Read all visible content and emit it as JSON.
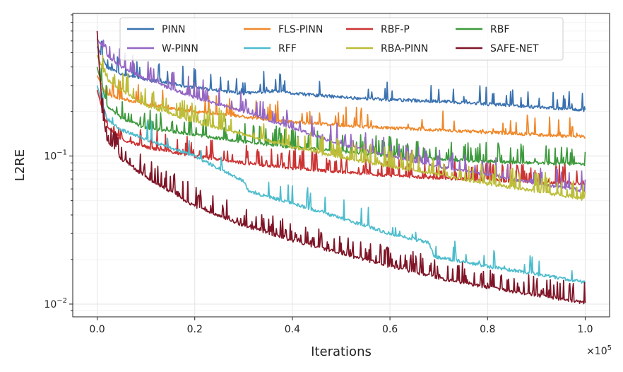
{
  "chart_data": {
    "type": "line",
    "title": "",
    "xlabel": "Iterations",
    "ylabel": "L2RE",
    "x_multiplier_label": "×10",
    "x_multiplier_exp": "5",
    "x_scale": "linear",
    "y_scale": "log",
    "xlim": [
      -0.05,
      1.05
    ],
    "ylim": [
      0.0082,
      0.92
    ],
    "x_ticks": [
      0.0,
      0.2,
      0.4,
      0.6,
      0.8,
      1.0
    ],
    "x_tick_labels": [
      "0.0",
      "0.2",
      "0.4",
      "0.6",
      "0.8",
      "1.0"
    ],
    "y_ticks": [
      0.1,
      0.01
    ],
    "y_tick_bases": [
      "10",
      "10"
    ],
    "y_tick_exponents": [
      "−1",
      "−2"
    ],
    "grid": true,
    "legend_position": "top-center",
    "legend_columns": 4,
    "series": [
      {
        "name": "PINN",
        "color": "#3a72b0",
        "noise": 0.12,
        "seed": 11,
        "points": [
          [
            0.0,
            0.55
          ],
          [
            0.02,
            0.4
          ],
          [
            0.05,
            0.36
          ],
          [
            0.1,
            0.33
          ],
          [
            0.2,
            0.29
          ],
          [
            0.3,
            0.265
          ],
          [
            0.36,
            0.275
          ],
          [
            0.4,
            0.265
          ],
          [
            0.5,
            0.25
          ],
          [
            0.6,
            0.24
          ],
          [
            0.7,
            0.235
          ],
          [
            0.8,
            0.225
          ],
          [
            0.9,
            0.215
          ],
          [
            1.0,
            0.205
          ]
        ]
      },
      {
        "name": "FLS-PINN",
        "color": "#f0882a",
        "noise": 0.08,
        "seed": 23,
        "points": [
          [
            0.0,
            0.35
          ],
          [
            0.02,
            0.26
          ],
          [
            0.05,
            0.245
          ],
          [
            0.1,
            0.225
          ],
          [
            0.2,
            0.2
          ],
          [
            0.3,
            0.185
          ],
          [
            0.4,
            0.17
          ],
          [
            0.5,
            0.162
          ],
          [
            0.6,
            0.155
          ],
          [
            0.7,
            0.15
          ],
          [
            0.8,
            0.145
          ],
          [
            0.9,
            0.14
          ],
          [
            1.0,
            0.135
          ]
        ]
      },
      {
        "name": "RBF-P",
        "color": "#cc3333",
        "noise": 0.22,
        "seed": 37,
        "points": [
          [
            0.0,
            0.28
          ],
          [
            0.02,
            0.16
          ],
          [
            0.05,
            0.13
          ],
          [
            0.1,
            0.115
          ],
          [
            0.2,
            0.1
          ],
          [
            0.3,
            0.09
          ],
          [
            0.4,
            0.083
          ],
          [
            0.5,
            0.078
          ],
          [
            0.6,
            0.074
          ],
          [
            0.7,
            0.071
          ],
          [
            0.8,
            0.069
          ],
          [
            0.9,
            0.067
          ],
          [
            1.0,
            0.065
          ]
        ]
      },
      {
        "name": "RBF",
        "color": "#3d9a3d",
        "noise": 0.22,
        "seed": 41,
        "points": [
          [
            0.0,
            0.4
          ],
          [
            0.02,
            0.22
          ],
          [
            0.05,
            0.18
          ],
          [
            0.1,
            0.155
          ],
          [
            0.2,
            0.14
          ],
          [
            0.3,
            0.125
          ],
          [
            0.4,
            0.115
          ],
          [
            0.5,
            0.108
          ],
          [
            0.6,
            0.1
          ],
          [
            0.7,
            0.095
          ],
          [
            0.8,
            0.092
          ],
          [
            0.9,
            0.09
          ],
          [
            1.0,
            0.088
          ]
        ]
      },
      {
        "name": "W-PINN",
        "color": "#9467c4",
        "noise": 0.2,
        "seed": 53,
        "points": [
          [
            0.0,
            0.62
          ],
          [
            0.02,
            0.48
          ],
          [
            0.05,
            0.4
          ],
          [
            0.1,
            0.33
          ],
          [
            0.2,
            0.25
          ],
          [
            0.3,
            0.2
          ],
          [
            0.4,
            0.155
          ],
          [
            0.5,
            0.12
          ],
          [
            0.6,
            0.1
          ],
          [
            0.7,
            0.085
          ],
          [
            0.8,
            0.075
          ],
          [
            0.9,
            0.065
          ],
          [
            1.0,
            0.058
          ]
        ]
      },
      {
        "name": "RFF",
        "color": "#4dbccd",
        "noise": 0.06,
        "seed": 67,
        "points": [
          [
            0.0,
            0.3
          ],
          [
            0.02,
            0.18
          ],
          [
            0.05,
            0.15
          ],
          [
            0.1,
            0.13
          ],
          [
            0.2,
            0.1
          ],
          [
            0.3,
            0.068
          ],
          [
            0.31,
            0.058
          ],
          [
            0.4,
            0.048
          ],
          [
            0.5,
            0.038
          ],
          [
            0.6,
            0.03
          ],
          [
            0.68,
            0.026
          ],
          [
            0.69,
            0.021
          ],
          [
            0.8,
            0.018
          ],
          [
            0.9,
            0.016
          ],
          [
            1.0,
            0.014
          ]
        ]
      },
      {
        "name": "RBA-PINN",
        "color": "#bcbd38",
        "noise": 0.25,
        "seed": 79,
        "points": [
          [
            0.0,
            0.48
          ],
          [
            0.02,
            0.33
          ],
          [
            0.05,
            0.28
          ],
          [
            0.1,
            0.22
          ],
          [
            0.2,
            0.17
          ],
          [
            0.3,
            0.14
          ],
          [
            0.4,
            0.115
          ],
          [
            0.5,
            0.098
          ],
          [
            0.6,
            0.085
          ],
          [
            0.7,
            0.075
          ],
          [
            0.8,
            0.065
          ],
          [
            0.9,
            0.058
          ],
          [
            1.0,
            0.051
          ]
        ]
      },
      {
        "name": "SAFE-NET",
        "color": "#7f1527",
        "noise": 0.3,
        "seed": 97,
        "points": [
          [
            0.0,
            0.7
          ],
          [
            0.01,
            0.2
          ],
          [
            0.02,
            0.13
          ],
          [
            0.05,
            0.095
          ],
          [
            0.1,
            0.072
          ],
          [
            0.2,
            0.046
          ],
          [
            0.3,
            0.034
          ],
          [
            0.4,
            0.027
          ],
          [
            0.5,
            0.022
          ],
          [
            0.6,
            0.018
          ],
          [
            0.7,
            0.015
          ],
          [
            0.8,
            0.013
          ],
          [
            0.9,
            0.0115
          ],
          [
            1.0,
            0.0102
          ]
        ]
      }
    ]
  }
}
